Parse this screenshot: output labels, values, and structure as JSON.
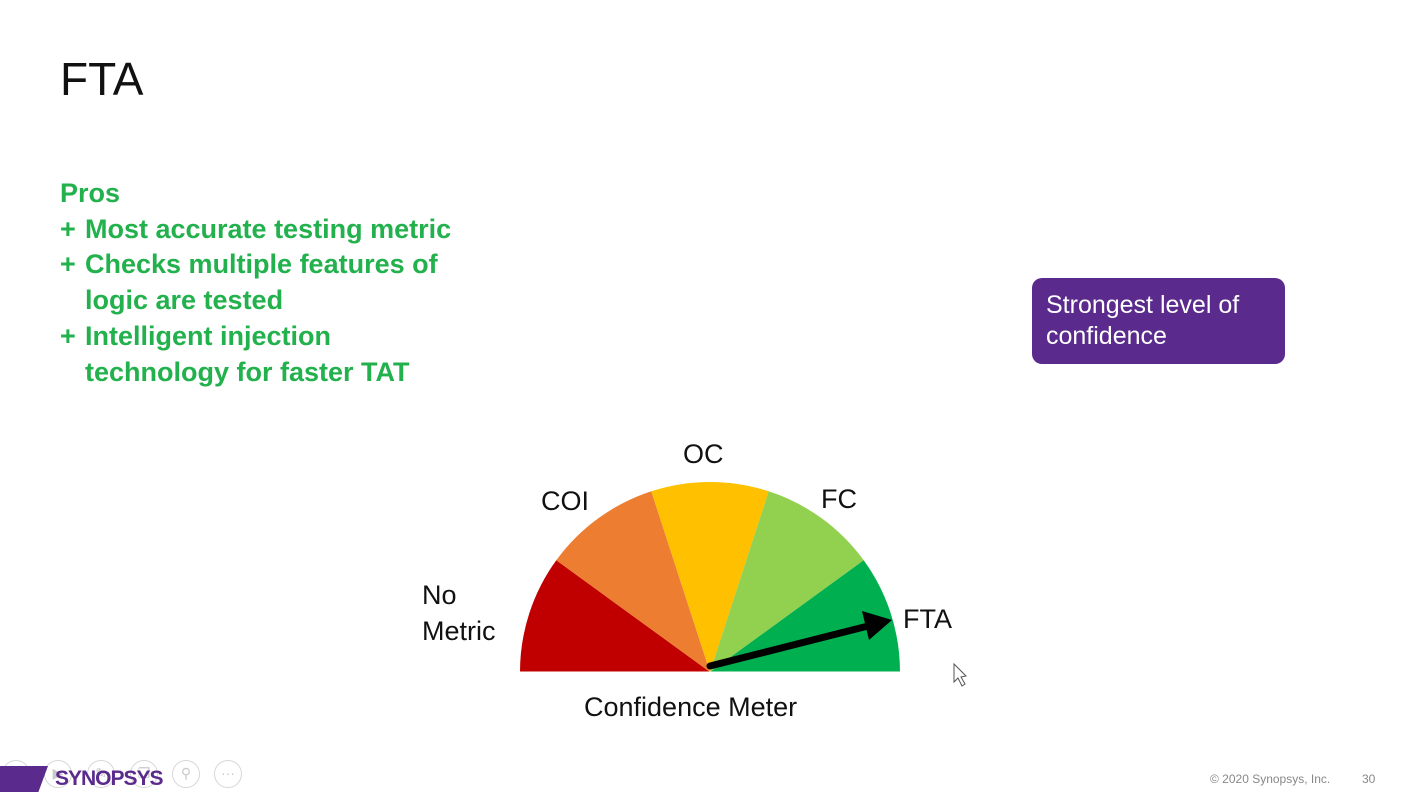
{
  "slide": {
    "title": "FTA",
    "pros": {
      "heading": "Pros",
      "items": [
        {
          "lines": [
            "Most accurate testing metric"
          ]
        },
        {
          "lines": [
            "Checks multiple features of",
            "logic are tested"
          ]
        },
        {
          "lines": [
            "Intelligent injection",
            "technology for faster TAT"
          ]
        }
      ]
    },
    "callout": {
      "text_line1": "Strongest level of",
      "text_line2": "confidence",
      "color": "#5a2a8c"
    }
  },
  "meter": {
    "caption": "Confidence Meter",
    "labels": {
      "no_metric_1": "No",
      "no_metric_2": "Metric",
      "coi": "COI",
      "oc": "OC",
      "fc": "FC",
      "fta": "FTA"
    },
    "segments": [
      {
        "name": "No Metric",
        "color": "#c00000"
      },
      {
        "name": "COI",
        "color": "#ed7d31"
      },
      {
        "name": "OC",
        "color": "#ffc000"
      },
      {
        "name": "FC",
        "color": "#92d050"
      },
      {
        "name": "FTA",
        "color": "#00b050"
      }
    ],
    "needle_points_to": "FTA"
  },
  "footer": {
    "copyright": "© 2020 Synopsys, Inc.",
    "page_number": "30",
    "logo_text": "SYNOPSYS",
    "toolbar_icons": [
      "previous-slide-icon",
      "next-slide-icon",
      "pen-icon",
      "slides-icon",
      "zoom-icon",
      "more-options-icon"
    ]
  }
}
